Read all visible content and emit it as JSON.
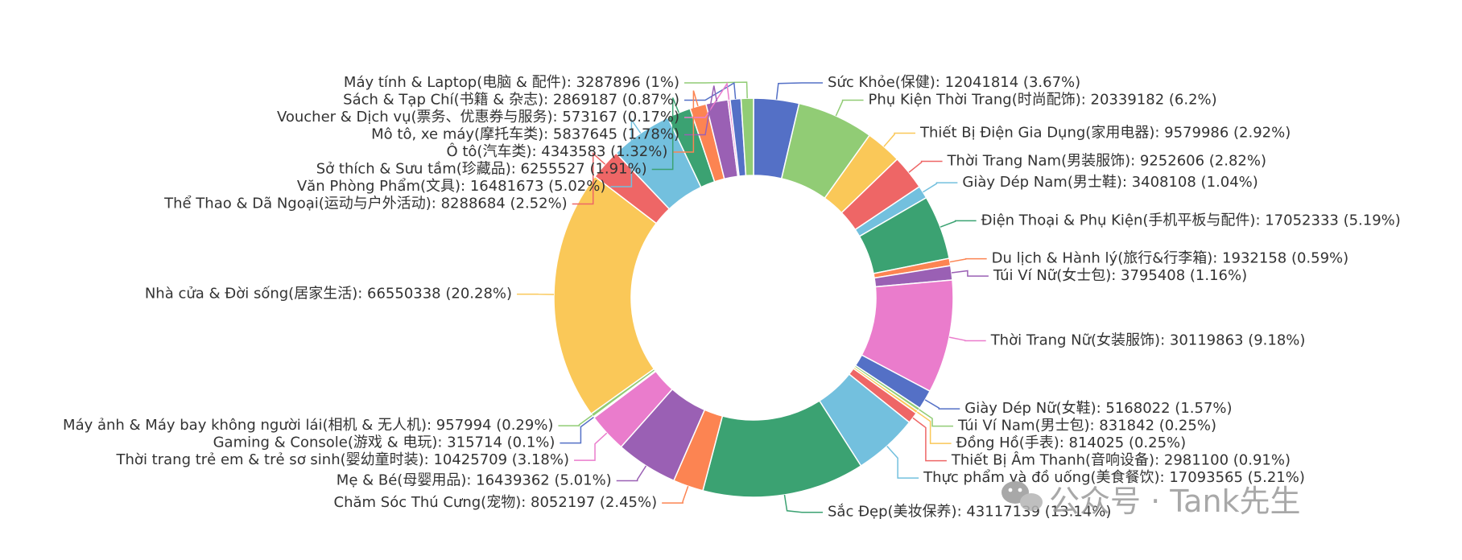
{
  "chart_data": {
    "type": "pie",
    "title": "",
    "slices": [
      {
        "name": "Sức Khỏe(保健)",
        "value": 12041814,
        "percent": "3.67%",
        "color": "#5470c6",
        "side": "right"
      },
      {
        "name": "Phụ Kiện Thời Trang(时尚配饰)",
        "value": 20339182,
        "percent": "6.2%",
        "color": "#91cc75",
        "side": "right"
      },
      {
        "name": "Thiết Bị Điện Gia Dụng(家用电器)",
        "value": 9579986,
        "percent": "2.92%",
        "color": "#fac858",
        "side": "right"
      },
      {
        "name": "Thời Trang Nam(男装服饰)",
        "value": 9252606,
        "percent": "2.82%",
        "color": "#ee6666",
        "side": "right"
      },
      {
        "name": "Giày Dép Nam(男士鞋)",
        "value": 3408108,
        "percent": "1.04%",
        "color": "#73c0de",
        "side": "right"
      },
      {
        "name": "Điện Thoại & Phụ Kiện(手机平板与配件)",
        "value": 17052333,
        "percent": "5.19%",
        "color": "#3ba272",
        "side": "right"
      },
      {
        "name": "Du lịch & Hành lý(旅行&行李箱)",
        "value": 1932158,
        "percent": "0.59%",
        "color": "#fc8452",
        "side": "right"
      },
      {
        "name": "Túi Ví Nữ(女士包)",
        "value": 3795408,
        "percent": "1.16%",
        "color": "#9a60b4",
        "side": "right"
      },
      {
        "name": "Thời Trang Nữ(女装服饰)",
        "value": 30119863,
        "percent": "9.18%",
        "color": "#ea7ccc",
        "side": "right"
      },
      {
        "name": "Giày Dép Nữ(女鞋)",
        "value": 5168022,
        "percent": "1.57%",
        "color": "#5470c6",
        "side": "right"
      },
      {
        "name": "Túi Ví Nam(男士包)",
        "value": 831842,
        "percent": "0.25%",
        "color": "#91cc75",
        "side": "right"
      },
      {
        "name": "Đồng Hồ(手表)",
        "value": 814025,
        "percent": "0.25%",
        "color": "#fac858",
        "side": "right"
      },
      {
        "name": "Thiết Bị Âm Thanh(音响设备)",
        "value": 2981100,
        "percent": "0.91%",
        "color": "#ee6666",
        "side": "right"
      },
      {
        "name": "Thực phẩm và đồ uống(美食餐饮)",
        "value": 17093565,
        "percent": "5.21%",
        "color": "#73c0de",
        "side": "right"
      },
      {
        "name": "Sắc Đẹp(美妆保养)",
        "value": 43117139,
        "percent": "13.14%",
        "color": "#3ba272",
        "side": "right"
      },
      {
        "name": "Chăm Sóc Thú Cưng(宠物)",
        "value": 8052197,
        "percent": "2.45%",
        "color": "#fc8452",
        "side": "left"
      },
      {
        "name": "Mẹ & Bé(母婴用品)",
        "value": 16439362,
        "percent": "5.01%",
        "color": "#9a60b4",
        "side": "left"
      },
      {
        "name": "Thời trang trẻ em & trẻ sơ sinh(婴幼童时装)",
        "value": 10425709,
        "percent": "3.18%",
        "color": "#ea7ccc",
        "side": "left"
      },
      {
        "name": "Gaming & Console(游戏 & 电玩)",
        "value": 315714,
        "percent": "0.1%",
        "color": "#5470c6",
        "side": "left"
      },
      {
        "name": "Máy ảnh & Máy bay không người lái(相机 & 无人机)",
        "value": 957994,
        "percent": "0.29%",
        "color": "#91cc75",
        "side": "left"
      },
      {
        "name": "Nhà cửa & Đời sống(居家生活)",
        "value": 66550338,
        "percent": "20.28%",
        "color": "#fac858",
        "side": "left"
      },
      {
        "name": "Thể Thao & Dã Ngoại(运动与户外活动)",
        "value": 8288684,
        "percent": "2.52%",
        "color": "#ee6666",
        "side": "left"
      },
      {
        "name": "Văn Phòng Phẩm(文具)",
        "value": 16481673,
        "percent": "5.02%",
        "color": "#73c0de",
        "side": "left"
      },
      {
        "name": "Sở thích & Sưu tầm(珍藏品)",
        "value": 6255527,
        "percent": "1.91%",
        "color": "#3ba272",
        "side": "left"
      },
      {
        "name": "Ô tô(汽车类)",
        "value": 4343583,
        "percent": "1.32%",
        "color": "#fc8452",
        "side": "left"
      },
      {
        "name": "Mô tô, xe máy(摩托车类)",
        "value": 5837645,
        "percent": "1.78%",
        "color": "#9a60b4",
        "side": "left"
      },
      {
        "name": "Voucher & Dịch vụ(票务、优惠券与服务)",
        "value": 573167,
        "percent": "0.17%",
        "color": "#ea7ccc",
        "side": "left"
      },
      {
        "name": "Sách & Tạp Chí(书籍 & 杂志)",
        "value": 2869187,
        "percent": "0.87%",
        "color": "#5470c6",
        "side": "left"
      },
      {
        "name": "Máy tính & Laptop(电脑 & 配件)",
        "value": 3287896,
        "percent": "1%",
        "color": "#91cc75",
        "side": "left"
      }
    ],
    "legend": "none"
  },
  "watermark": {
    "icon": "wechat-icon",
    "text": "公众号 · Tank先生"
  }
}
